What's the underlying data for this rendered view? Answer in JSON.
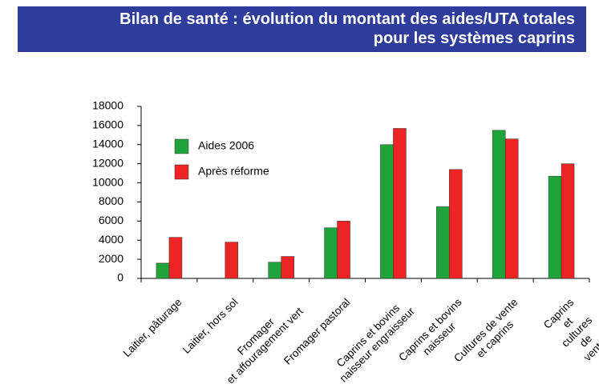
{
  "chart_data": {
    "type": "bar",
    "title": "Bilan de santé : évolution du montant des aides/UTA totales\npour les systèmes caprins",
    "categories": [
      "Laitier, pâturage",
      "Laitier, hors sol",
      "Fromager\net affouragement vert",
      "Fromager pastoral",
      "Caprins et bovins\nnaisseur engraisseur",
      "Caprins et bovins\nnaisseur",
      "Cultures de vente\net caprins",
      "Caprins\net cultures de vente"
    ],
    "series": [
      {
        "name": "Aides 2006",
        "color": "#1fa33a",
        "values": [
          1600,
          0,
          1700,
          5300,
          14000,
          7500,
          15500,
          10700
        ]
      },
      {
        "name": "Après réforme",
        "color": "#ee2424",
        "values": [
          4300,
          3800,
          2300,
          6000,
          15700,
          11400,
          14600,
          12000
        ]
      }
    ],
    "ylim": [
      0,
      18000
    ],
    "yticks": [
      0,
      2000,
      4000,
      6000,
      8000,
      10000,
      12000,
      14000,
      16000,
      18000
    ],
    "legend": "upper left"
  }
}
